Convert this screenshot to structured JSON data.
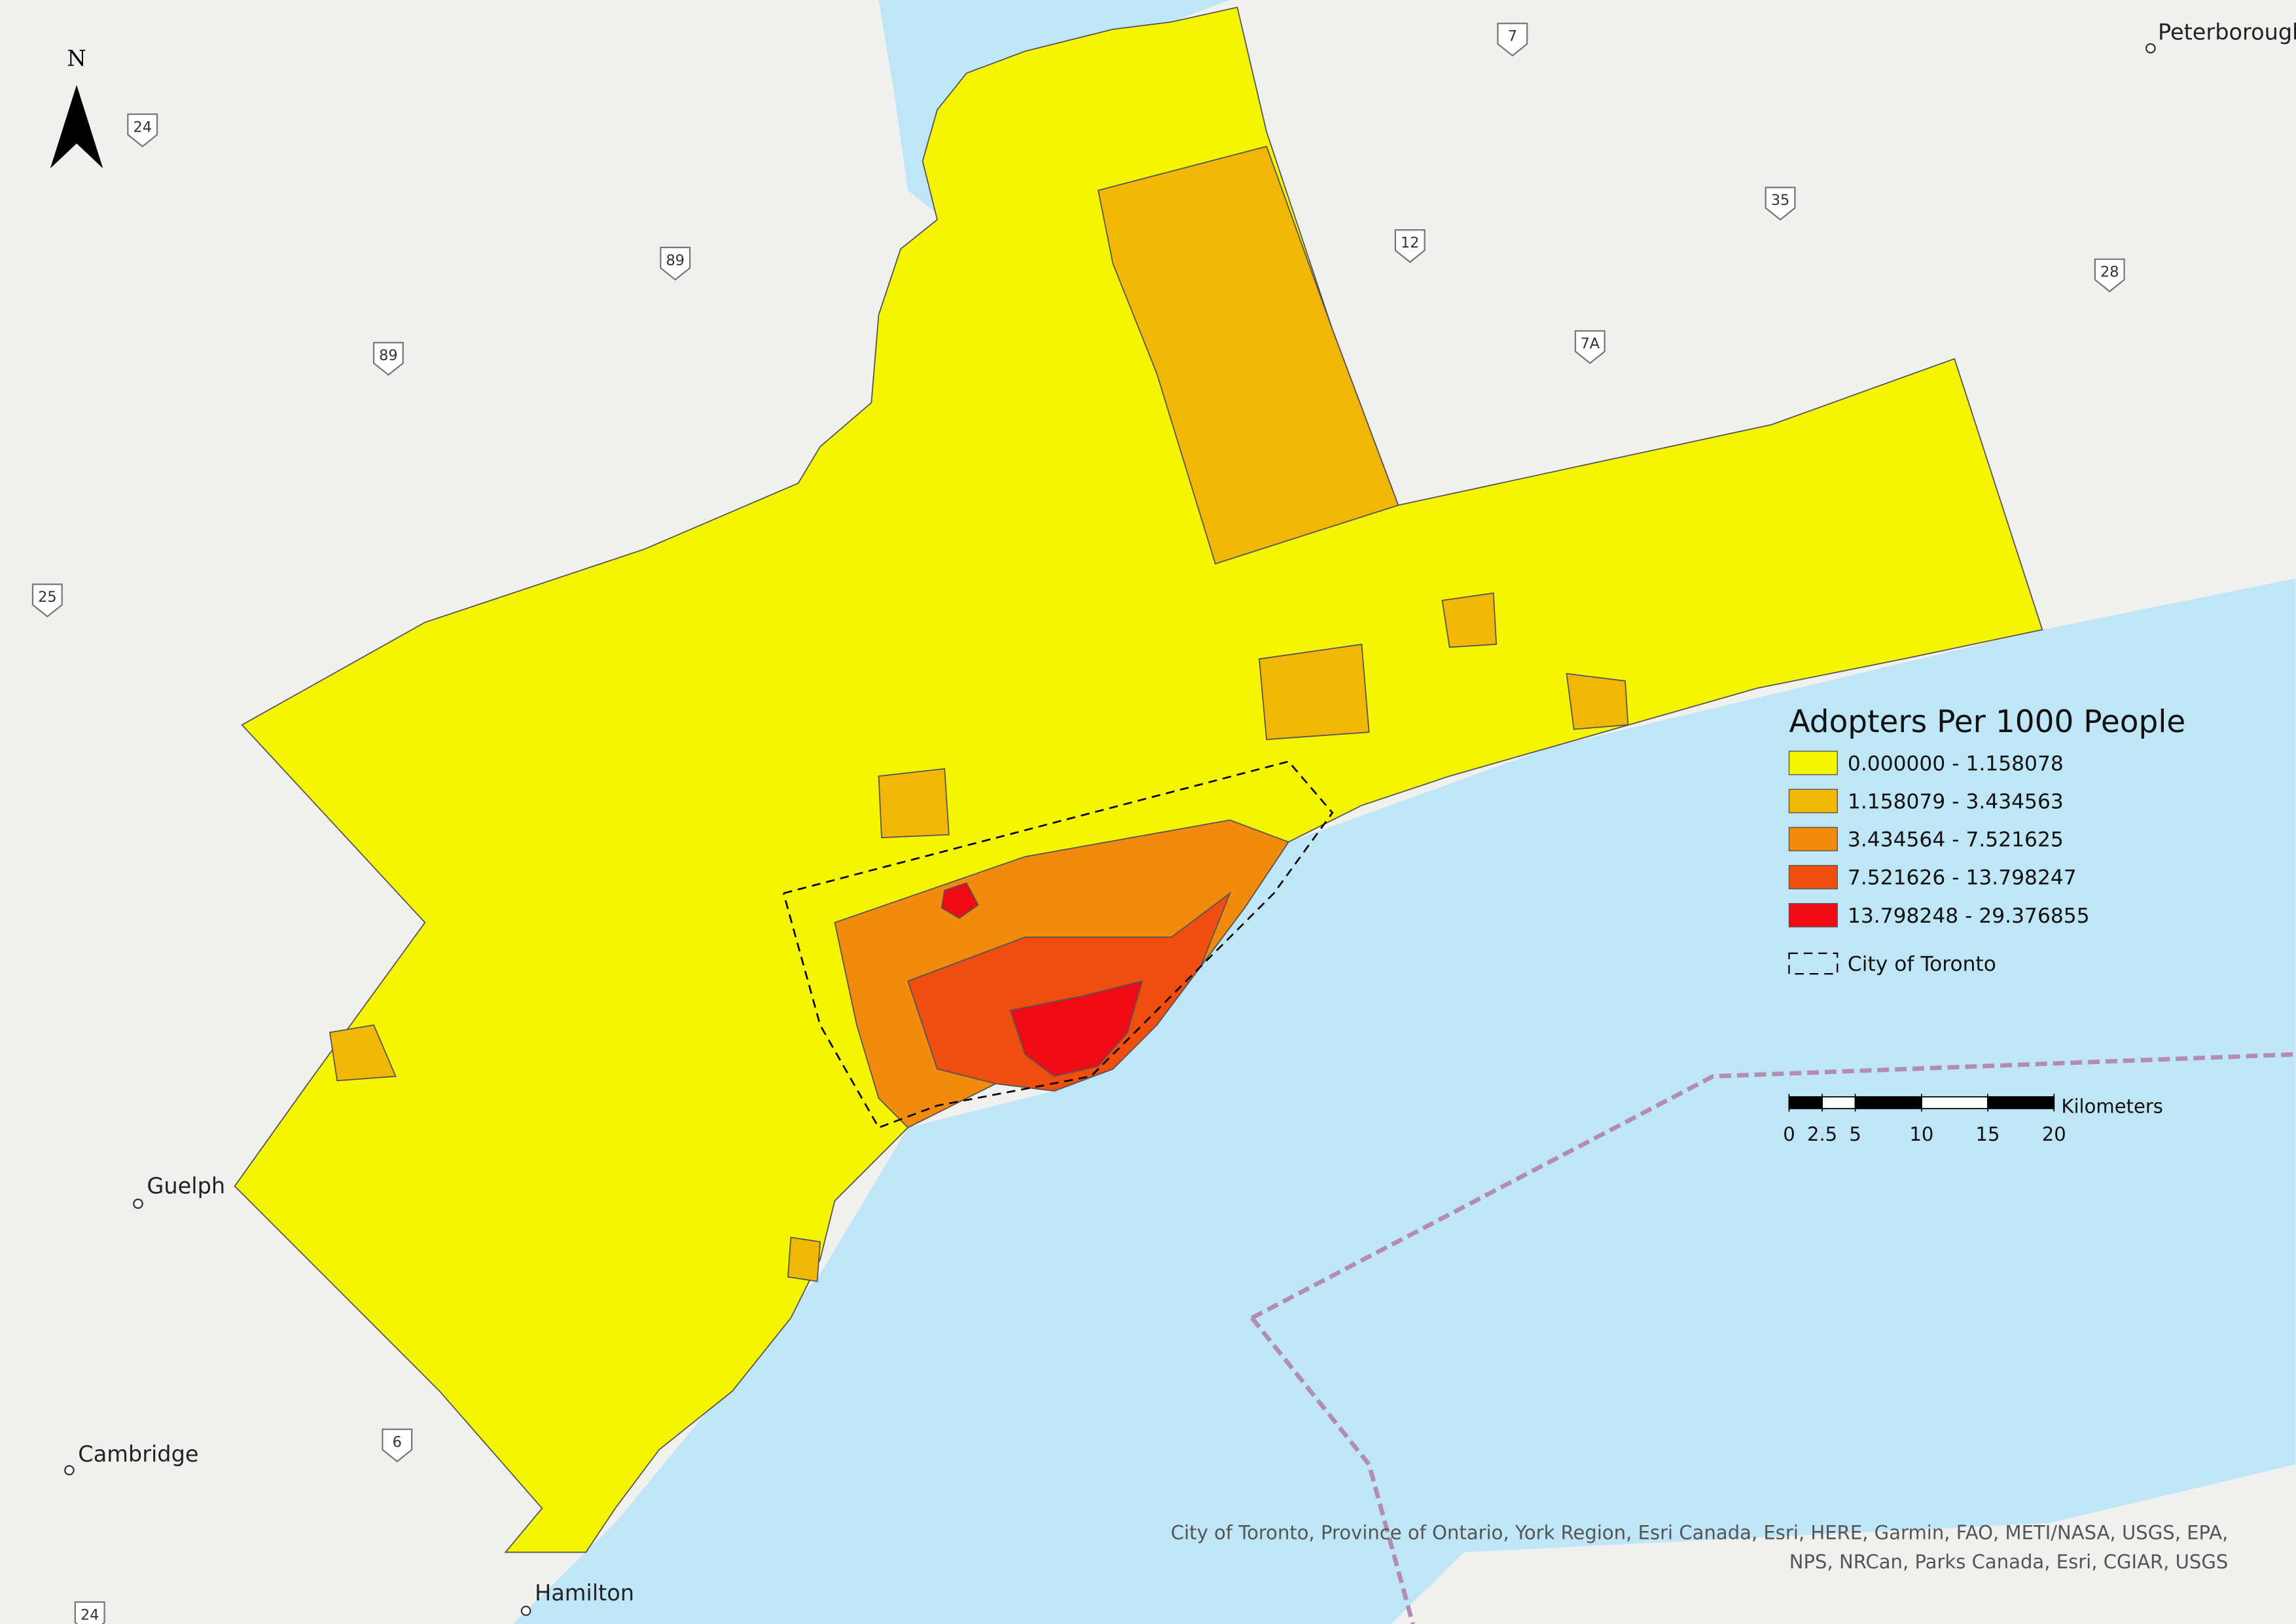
{
  "north_arrow": {
    "label": "N"
  },
  "legend": {
    "title": "Adopters Per 1000 People",
    "items": [
      {
        "label": "0.000000 - 1.158078",
        "color": "#f5f500"
      },
      {
        "label": "1.158079 - 3.434563",
        "color": "#f2b705"
      },
      {
        "label": "3.434564 - 7.521625",
        "color": "#f28a0c"
      },
      {
        "label": "7.521626 - 13.798247",
        "color": "#f04e0e"
      },
      {
        "label": "13.798248 - 29.376855",
        "color": "#f00a14"
      }
    ],
    "boundary_label": "City of Toronto"
  },
  "scale_bar": {
    "unit": "Kilometers",
    "ticks": [
      0,
      2.5,
      5,
      10,
      15,
      20
    ]
  },
  "places": [
    "Peterborough",
    "Guelph",
    "Cambridge",
    "Hamilton"
  ],
  "highways": [
    "24",
    "89",
    "89",
    "25",
    "12",
    "35",
    "28",
    "7A",
    "7",
    "6",
    "24"
  ],
  "attribution": [
    "City of Toronto, Province of Ontario, York Region, Esri Canada, Esri, HERE, Garmin, FAO, METI/NASA, USGS, EPA,",
    "NPS, NRCan, Parks Canada, Esri, CGIAR, USGS"
  ]
}
